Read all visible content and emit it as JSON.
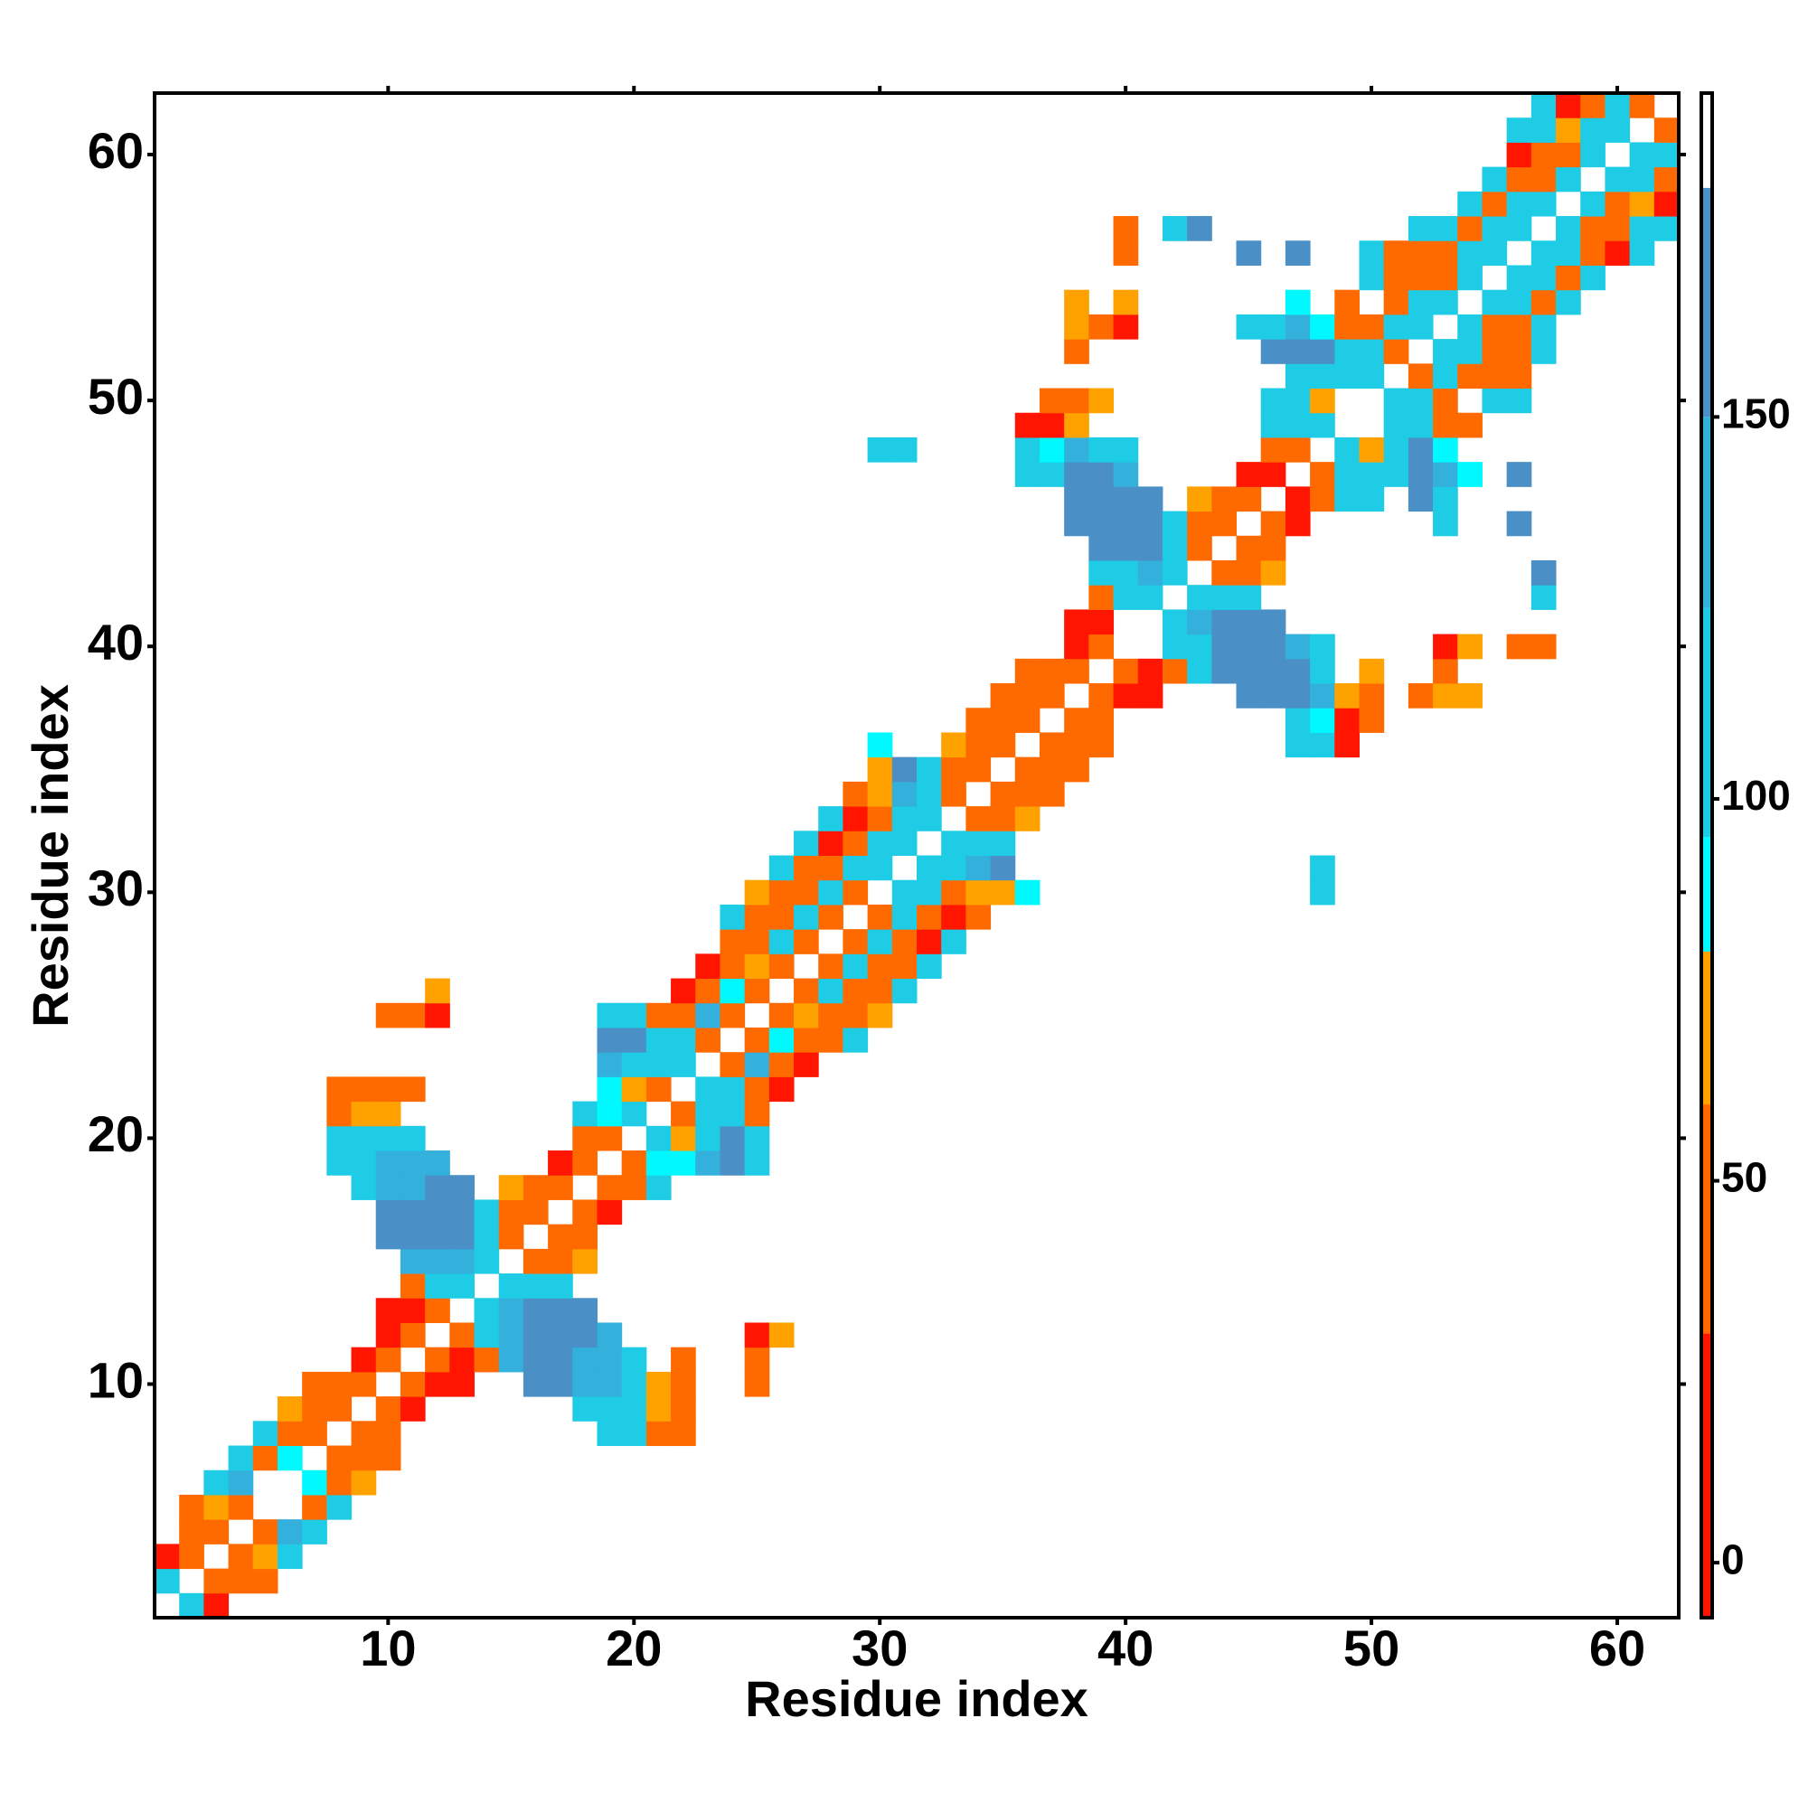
{
  "chart_data": {
    "type": "heatmap",
    "symmetric": true,
    "xlabel": "Residue index",
    "ylabel": "Residue index",
    "xlim": [
      0.5,
      62.5
    ],
    "ylim": [
      0.5,
      62.5
    ],
    "xticks": [
      10,
      20,
      30,
      40,
      50,
      60
    ],
    "yticks": [
      10,
      20,
      30,
      40,
      50,
      60
    ],
    "zlim": [
      -7.2,
      192.4
    ],
    "zticks": [
      0,
      50,
      100,
      150
    ],
    "colorscale": [
      {
        "value": 30,
        "color": "#ff1500"
      },
      {
        "value": 60,
        "color": "#ff6a00"
      },
      {
        "value": 80,
        "color": "#ffa200"
      },
      {
        "value": 95,
        "color": "#00f8ff"
      },
      {
        "value": 125,
        "color": "#1ecce6"
      },
      {
        "value": 150,
        "color": "#33b0dc"
      },
      {
        "value": 180,
        "color": "#4a90c6"
      },
      {
        "value": 192.4,
        "color": "#ffffff"
      }
    ],
    "cells": [
      [
        2,
        1,
        110
      ],
      [
        3,
        1,
        10
      ],
      [
        3,
        2,
        45
      ],
      [
        4,
        2,
        45
      ],
      [
        5,
        2,
        45
      ],
      [
        4,
        3,
        45
      ],
      [
        5,
        3,
        70
      ],
      [
        6,
        3,
        110
      ],
      [
        5,
        4,
        45
      ],
      [
        6,
        4,
        140
      ],
      [
        7,
        4,
        110
      ],
      [
        7,
        5,
        45
      ],
      [
        8,
        5,
        110
      ],
      [
        7,
        6,
        90
      ],
      [
        8,
        6,
        45
      ],
      [
        9,
        6,
        70
      ],
      [
        8,
        7,
        45
      ],
      [
        9,
        7,
        45
      ],
      [
        10,
        7,
        45
      ],
      [
        9,
        8,
        45
      ],
      [
        10,
        8,
        45
      ],
      [
        19,
        8,
        110
      ],
      [
        20,
        8,
        110
      ],
      [
        21,
        8,
        45
      ],
      [
        22,
        8,
        45
      ],
      [
        10,
        9,
        45
      ],
      [
        11,
        9,
        10
      ],
      [
        18,
        9,
        110
      ],
      [
        19,
        9,
        110
      ],
      [
        20,
        9,
        110
      ],
      [
        21,
        9,
        70
      ],
      [
        22,
        9,
        45
      ],
      [
        11,
        10,
        45
      ],
      [
        12,
        10,
        10
      ],
      [
        13,
        10,
        10
      ],
      [
        16,
        10,
        165
      ],
      [
        17,
        10,
        165
      ],
      [
        18,
        10,
        140
      ],
      [
        19,
        10,
        140
      ],
      [
        20,
        10,
        110
      ],
      [
        21,
        10,
        70
      ],
      [
        22,
        10,
        45
      ],
      [
        25,
        10,
        45
      ],
      [
        12,
        11,
        45
      ],
      [
        13,
        11,
        10
      ],
      [
        14,
        11,
        45
      ],
      [
        15,
        11,
        140
      ],
      [
        16,
        11,
        165
      ],
      [
        17,
        11,
        165
      ],
      [
        18,
        11,
        140
      ],
      [
        19,
        11,
        140
      ],
      [
        20,
        11,
        110
      ],
      [
        22,
        11,
        45
      ],
      [
        25,
        11,
        45
      ],
      [
        13,
        12,
        45
      ],
      [
        14,
        12,
        110
      ],
      [
        15,
        12,
        140
      ],
      [
        16,
        12,
        165
      ],
      [
        17,
        12,
        165
      ],
      [
        18,
        12,
        165
      ],
      [
        19,
        12,
        140
      ],
      [
        25,
        12,
        10
      ],
      [
        26,
        12,
        70
      ],
      [
        14,
        13,
        110
      ],
      [
        15,
        13,
        140
      ],
      [
        16,
        13,
        165
      ],
      [
        17,
        13,
        165
      ],
      [
        18,
        13,
        165
      ],
      [
        15,
        14,
        110
      ],
      [
        16,
        14,
        110
      ],
      [
        17,
        14,
        110
      ],
      [
        16,
        15,
        45
      ],
      [
        17,
        15,
        45
      ],
      [
        18,
        15,
        70
      ],
      [
        17,
        16,
        45
      ],
      [
        18,
        16,
        45
      ],
      [
        18,
        17,
        45
      ],
      [
        19,
        17,
        10
      ],
      [
        19,
        18,
        45
      ],
      [
        20,
        18,
        45
      ],
      [
        21,
        18,
        110
      ],
      [
        20,
        19,
        45
      ],
      [
        21,
        19,
        90
      ],
      [
        22,
        19,
        90
      ],
      [
        23,
        19,
        140
      ],
      [
        24,
        19,
        165
      ],
      [
        25,
        19,
        110
      ],
      [
        21,
        20,
        110
      ],
      [
        22,
        20,
        70
      ],
      [
        23,
        20,
        110
      ],
      [
        24,
        20,
        165
      ],
      [
        25,
        20,
        110
      ],
      [
        22,
        21,
        45
      ],
      [
        23,
        21,
        110
      ],
      [
        24,
        21,
        110
      ],
      [
        25,
        21,
        45
      ],
      [
        23,
        22,
        110
      ],
      [
        24,
        22,
        110
      ],
      [
        25,
        22,
        45
      ],
      [
        26,
        22,
        10
      ],
      [
        24,
        23,
        45
      ],
      [
        25,
        23,
        140
      ],
      [
        26,
        23,
        45
      ],
      [
        27,
        23,
        10
      ],
      [
        25,
        24,
        45
      ],
      [
        26,
        24,
        90
      ],
      [
        27,
        24,
        45
      ],
      [
        28,
        24,
        45
      ],
      [
        29,
        24,
        110
      ],
      [
        26,
        25,
        45
      ],
      [
        27,
        25,
        70
      ],
      [
        28,
        25,
        45
      ],
      [
        29,
        25,
        45
      ],
      [
        30,
        25,
        70
      ],
      [
        27,
        26,
        45
      ],
      [
        28,
        26,
        110
      ],
      [
        29,
        26,
        45
      ],
      [
        30,
        26,
        45
      ],
      [
        31,
        26,
        110
      ],
      [
        28,
        27,
        45
      ],
      [
        29,
        27,
        110
      ],
      [
        30,
        27,
        45
      ],
      [
        31,
        27,
        45
      ],
      [
        32,
        27,
        110
      ],
      [
        29,
        28,
        45
      ],
      [
        30,
        28,
        110
      ],
      [
        31,
        28,
        45
      ],
      [
        32,
        28,
        10
      ],
      [
        33,
        28,
        110
      ],
      [
        30,
        29,
        45
      ],
      [
        31,
        29,
        110
      ],
      [
        32,
        29,
        45
      ],
      [
        33,
        29,
        10
      ],
      [
        34,
        29,
        45
      ],
      [
        31,
        30,
        110
      ],
      [
        32,
        30,
        110
      ],
      [
        33,
        30,
        45
      ],
      [
        34,
        30,
        70
      ],
      [
        35,
        30,
        70
      ],
      [
        36,
        30,
        90
      ],
      [
        48,
        30,
        110
      ],
      [
        32,
        31,
        110
      ],
      [
        33,
        31,
        110
      ],
      [
        34,
        31,
        140
      ],
      [
        35,
        31,
        165
      ],
      [
        48,
        31,
        110
      ],
      [
        33,
        32,
        110
      ],
      [
        34,
        32,
        110
      ],
      [
        35,
        32,
        110
      ],
      [
        34,
        33,
        45
      ],
      [
        35,
        33,
        45
      ],
      [
        36,
        33,
        70
      ],
      [
        35,
        34,
        45
      ],
      [
        36,
        34,
        45
      ],
      [
        37,
        34,
        45
      ],
      [
        36,
        35,
        45
      ],
      [
        37,
        35,
        45
      ],
      [
        38,
        35,
        45
      ],
      [
        37,
        36,
        45
      ],
      [
        38,
        36,
        45
      ],
      [
        39,
        36,
        45
      ],
      [
        47,
        36,
        110
      ],
      [
        48,
        36,
        110
      ],
      [
        49,
        36,
        10
      ],
      [
        38,
        37,
        45
      ],
      [
        39,
        37,
        45
      ],
      [
        47,
        37,
        110
      ],
      [
        48,
        37,
        90
      ],
      [
        49,
        37,
        10
      ],
      [
        50,
        37,
        45
      ],
      [
        39,
        38,
        45
      ],
      [
        40,
        38,
        10
      ],
      [
        41,
        38,
        10
      ],
      [
        45,
        38,
        165
      ],
      [
        46,
        38,
        165
      ],
      [
        47,
        38,
        165
      ],
      [
        48,
        38,
        140
      ],
      [
        49,
        38,
        70
      ],
      [
        50,
        38,
        45
      ],
      [
        52,
        38,
        45
      ],
      [
        53,
        38,
        70
      ],
      [
        54,
        38,
        70
      ],
      [
        40,
        39,
        45
      ],
      [
        41,
        39,
        10
      ],
      [
        42,
        39,
        45
      ],
      [
        43,
        39,
        110
      ],
      [
        44,
        39,
        165
      ],
      [
        45,
        39,
        165
      ],
      [
        46,
        39,
        165
      ],
      [
        47,
        39,
        165
      ],
      [
        48,
        39,
        110
      ],
      [
        50,
        39,
        70
      ],
      [
        53,
        39,
        45
      ],
      [
        42,
        40,
        110
      ],
      [
        43,
        40,
        110
      ],
      [
        44,
        40,
        165
      ],
      [
        45,
        40,
        165
      ],
      [
        46,
        40,
        165
      ],
      [
        47,
        40,
        140
      ],
      [
        48,
        40,
        110
      ],
      [
        53,
        40,
        10
      ],
      [
        54,
        40,
        70
      ],
      [
        56,
        40,
        45
      ],
      [
        57,
        40,
        45
      ],
      [
        42,
        41,
        110
      ],
      [
        43,
        41,
        140
      ],
      [
        44,
        41,
        165
      ],
      [
        45,
        41,
        165
      ],
      [
        46,
        41,
        165
      ],
      [
        43,
        42,
        110
      ],
      [
        44,
        42,
        110
      ],
      [
        45,
        42,
        110
      ],
      [
        57,
        42,
        110
      ],
      [
        44,
        43,
        45
      ],
      [
        45,
        43,
        45
      ],
      [
        46,
        43,
        70
      ],
      [
        57,
        43,
        165
      ],
      [
        45,
        44,
        45
      ],
      [
        46,
        44,
        45
      ],
      [
        46,
        45,
        45
      ],
      [
        47,
        45,
        10
      ],
      [
        53,
        45,
        110
      ],
      [
        56,
        45,
        165
      ],
      [
        47,
        46,
        10
      ],
      [
        48,
        46,
        45
      ],
      [
        49,
        46,
        110
      ],
      [
        50,
        46,
        110
      ],
      [
        52,
        46,
        165
      ],
      [
        53,
        46,
        110
      ],
      [
        48,
        47,
        45
      ],
      [
        49,
        47,
        110
      ],
      [
        50,
        47,
        110
      ],
      [
        51,
        47,
        110
      ],
      [
        52,
        47,
        165
      ],
      [
        53,
        47,
        140
      ],
      [
        54,
        47,
        90
      ],
      [
        56,
        47,
        165
      ],
      [
        49,
        48,
        110
      ],
      [
        50,
        48,
        70
      ],
      [
        51,
        48,
        110
      ],
      [
        52,
        48,
        165
      ],
      [
        53,
        48,
        90
      ],
      [
        51,
        49,
        110
      ],
      [
        52,
        49,
        110
      ],
      [
        53,
        49,
        45
      ],
      [
        54,
        49,
        45
      ],
      [
        51,
        50,
        110
      ],
      [
        52,
        50,
        110
      ],
      [
        53,
        50,
        45
      ],
      [
        55,
        50,
        110
      ],
      [
        56,
        50,
        110
      ],
      [
        52,
        51,
        45
      ],
      [
        53,
        51,
        110
      ],
      [
        54,
        51,
        45
      ],
      [
        55,
        51,
        45
      ],
      [
        56,
        51,
        45
      ],
      [
        53,
        52,
        110
      ],
      [
        54,
        52,
        110
      ],
      [
        55,
        52,
        45
      ],
      [
        56,
        52,
        45
      ],
      [
        57,
        52,
        110
      ],
      [
        54,
        53,
        110
      ],
      [
        55,
        53,
        45
      ],
      [
        56,
        53,
        45
      ],
      [
        57,
        53,
        110
      ],
      [
        55,
        54,
        110
      ],
      [
        56,
        54,
        110
      ],
      [
        57,
        54,
        45
      ],
      [
        58,
        54,
        110
      ],
      [
        56,
        55,
        110
      ],
      [
        57,
        55,
        110
      ],
      [
        58,
        55,
        45
      ],
      [
        59,
        55,
        110
      ],
      [
        57,
        56,
        110
      ],
      [
        58,
        56,
        110
      ],
      [
        59,
        56,
        45
      ],
      [
        60,
        56,
        10
      ],
      [
        61,
        56,
        110
      ],
      [
        58,
        57,
        110
      ],
      [
        59,
        57,
        45
      ],
      [
        60,
        57,
        45
      ],
      [
        61,
        57,
        110
      ],
      [
        62,
        57,
        110
      ],
      [
        59,
        58,
        110
      ],
      [
        60,
        58,
        45
      ],
      [
        61,
        58,
        70
      ],
      [
        62,
        58,
        10
      ],
      [
        60,
        59,
        110
      ],
      [
        61,
        59,
        110
      ],
      [
        62,
        59,
        45
      ],
      [
        61,
        60,
        110
      ],
      [
        62,
        60,
        110
      ],
      [
        62,
        61,
        45
      ]
    ]
  }
}
